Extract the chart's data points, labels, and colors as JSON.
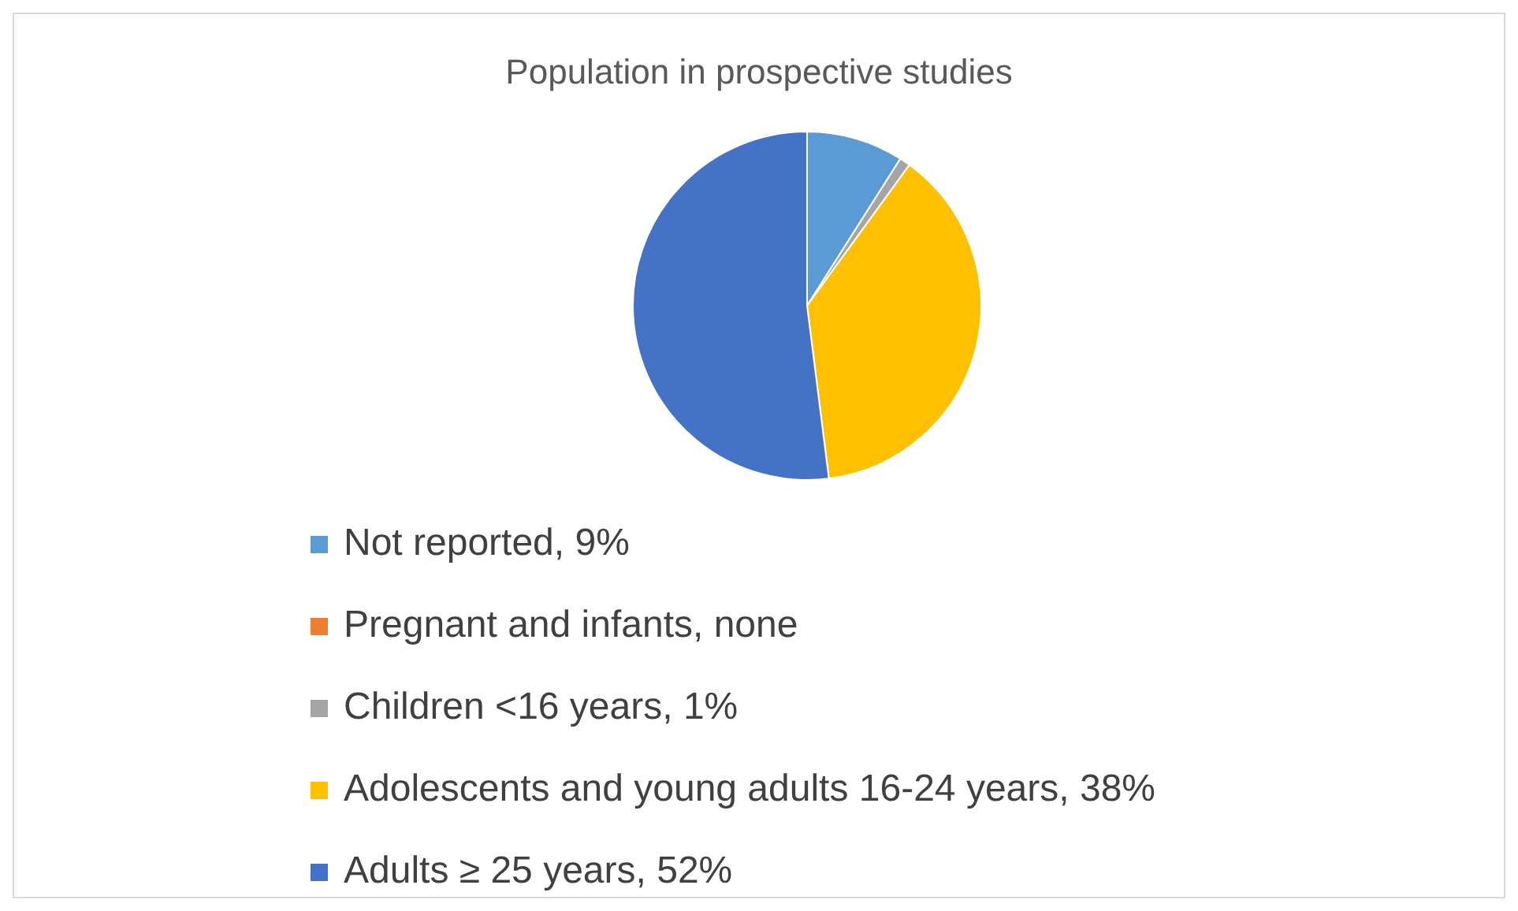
{
  "chart_data": {
    "type": "pie",
    "title": "Population in prospective studies",
    "categories": [
      "Not reported, 9%",
      "Pregnant and infants, none",
      "Children <16 years, 1%",
      "Adolescents and young adults 16-24 years, 38%",
      "Adults ≥ 25 years, 52%"
    ],
    "values": [
      9,
      0,
      1,
      38,
      52
    ],
    "colors": [
      "#5b9bd5",
      "#ed7d31",
      "#a5a5a5",
      "#ffc000",
      "#4472c4"
    ],
    "legend": "bottom"
  }
}
